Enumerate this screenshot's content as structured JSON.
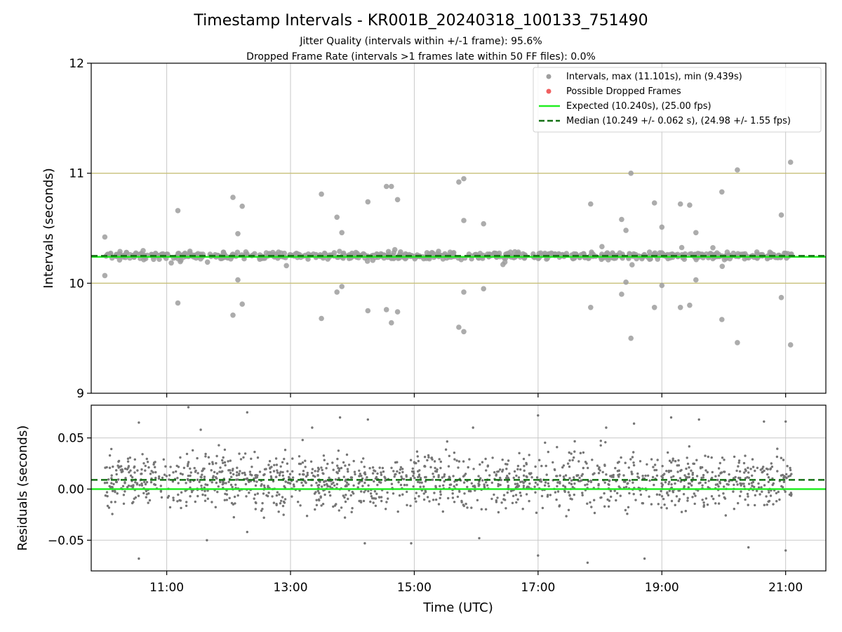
{
  "chart_data": [
    {
      "type": "scatter",
      "title": "Timestamp Intervals - KR001B_20240318_100133_751490",
      "subtitle_lines": [
        "Jitter Quality (intervals within +/-1 frame): 95.6%",
        "Dropped Frame Rate (intervals >1 frames late within 50 FF files): 0.0%"
      ],
      "ylabel": "Intervals (seconds)",
      "ylim": [
        9,
        12
      ],
      "yticks": [
        9,
        10,
        11,
        12
      ],
      "ytick_labels": [
        "9",
        "10",
        "11",
        "12"
      ],
      "xlim_hours": [
        9.78,
        21.65
      ],
      "xticks_hours": [
        11,
        13,
        15,
        17,
        19,
        21
      ],
      "grid": true,
      "reference_lines": [
        {
          "y": 11,
          "color": "#c8c07a"
        },
        {
          "y": 10,
          "color": "#c8c07a"
        }
      ],
      "legend_position": "top-right",
      "legend": [
        {
          "label": "Intervals, max (11.101s), min (9.439s)",
          "marker": "circle",
          "color": "#9e9e9e"
        },
        {
          "label": "Possible Dropped Frames",
          "marker": "circle",
          "color": "#f06060"
        },
        {
          "label": "Expected (10.240s), (25.00 fps)",
          "marker": "solid-line",
          "color": "#22ee22"
        },
        {
          "label": "Median (10.249 +/- 0.062 s), (24.98 +/- 1.55 fps)",
          "marker": "dashed-line",
          "color": "#147014"
        }
      ],
      "series": [
        {
          "name": "Intervals, max (11.101s), min (9.439s)",
          "color": "#9e9e9e",
          "band": {
            "x_start": 10.0,
            "x_end": 21.1,
            "center": 10.25,
            "spread": 0.045,
            "count": 700
          },
          "points": [
            {
              "x": 10.0,
              "y": 10.42
            },
            {
              "x": 10.0,
              "y": 10.07
            },
            {
              "x": 11.18,
              "y": 10.66
            },
            {
              "x": 11.18,
              "y": 9.82
            },
            {
              "x": 12.07,
              "y": 10.78
            },
            {
              "x": 12.07,
              "y": 9.71
            },
            {
              "x": 12.15,
              "y": 10.45
            },
            {
              "x": 12.15,
              "y": 10.03
            },
            {
              "x": 12.22,
              "y": 10.7
            },
            {
              "x": 12.22,
              "y": 9.81
            },
            {
              "x": 13.5,
              "y": 10.81
            },
            {
              "x": 13.5,
              "y": 9.68
            },
            {
              "x": 13.75,
              "y": 10.6
            },
            {
              "x": 13.75,
              "y": 9.92
            },
            {
              "x": 13.83,
              "y": 10.46
            },
            {
              "x": 13.83,
              "y": 9.97
            },
            {
              "x": 14.25,
              "y": 10.74
            },
            {
              "x": 14.25,
              "y": 9.75
            },
            {
              "x": 14.55,
              "y": 10.88
            },
            {
              "x": 14.55,
              "y": 9.76
            },
            {
              "x": 14.63,
              "y": 10.88
            },
            {
              "x": 14.63,
              "y": 9.64
            },
            {
              "x": 14.73,
              "y": 10.76
            },
            {
              "x": 14.73,
              "y": 9.74
            },
            {
              "x": 15.72,
              "y": 10.92
            },
            {
              "x": 15.72,
              "y": 9.6
            },
            {
              "x": 15.8,
              "y": 10.95
            },
            {
              "x": 15.8,
              "y": 9.56
            },
            {
              "x": 15.8,
              "y": 10.57
            },
            {
              "x": 15.8,
              "y": 9.92
            },
            {
              "x": 16.12,
              "y": 10.54
            },
            {
              "x": 16.12,
              "y": 9.95
            },
            {
              "x": 17.85,
              "y": 10.72
            },
            {
              "x": 17.85,
              "y": 9.78
            },
            {
              "x": 18.35,
              "y": 10.58
            },
            {
              "x": 18.35,
              "y": 9.9
            },
            {
              "x": 18.42,
              "y": 10.48
            },
            {
              "x": 18.42,
              "y": 10.01
            },
            {
              "x": 18.5,
              "y": 11.0
            },
            {
              "x": 18.5,
              "y": 9.5
            },
            {
              "x": 18.88,
              "y": 10.73
            },
            {
              "x": 18.88,
              "y": 9.78
            },
            {
              "x": 19.0,
              "y": 10.51
            },
            {
              "x": 19.0,
              "y": 9.98
            },
            {
              "x": 19.3,
              "y": 10.72
            },
            {
              "x": 19.3,
              "y": 9.78
            },
            {
              "x": 19.45,
              "y": 10.71
            },
            {
              "x": 19.45,
              "y": 9.8
            },
            {
              "x": 19.55,
              "y": 10.46
            },
            {
              "x": 19.55,
              "y": 10.03
            },
            {
              "x": 19.97,
              "y": 10.83
            },
            {
              "x": 19.97,
              "y": 9.67
            },
            {
              "x": 20.22,
              "y": 11.03
            },
            {
              "x": 20.22,
              "y": 9.46
            },
            {
              "x": 20.93,
              "y": 10.62
            },
            {
              "x": 20.93,
              "y": 9.87
            },
            {
              "x": 21.08,
              "y": 11.1
            },
            {
              "x": 21.08,
              "y": 9.44
            }
          ]
        },
        {
          "name": "Expected (10.240s), (25.00 fps)",
          "type": "hline",
          "y": 10.24,
          "color": "#22ee22",
          "style": "solid"
        },
        {
          "name": "Median (10.249 +/- 0.062 s), (24.98 +/- 1.55 fps)",
          "type": "hline",
          "y": 10.249,
          "color": "#147014",
          "style": "dashed"
        }
      ]
    },
    {
      "type": "scatter",
      "xlabel": "Time (UTC)",
      "ylabel": "Residuals (seconds)",
      "ylim": [
        -0.08,
        0.082
      ],
      "yticks": [
        -0.05,
        0.0,
        0.05
      ],
      "ytick_labels": [
        "−0.05",
        "0.00",
        "0.05"
      ],
      "xlim_hours": [
        9.78,
        21.65
      ],
      "xticks_hours": [
        11,
        13,
        15,
        17,
        19,
        21
      ],
      "xtick_labels": [
        "11:00",
        "13:00",
        "15:00",
        "17:00",
        "19:00",
        "21:00"
      ],
      "grid": true,
      "series": [
        {
          "name": "",
          "color": "#757575",
          "band": {
            "x_start": 10.0,
            "x_end": 21.1,
            "center": 0.008,
            "spread": 0.016,
            "count": 1500
          },
          "points": [
            {
              "x": 10.55,
              "y": 0.065
            },
            {
              "x": 10.55,
              "y": -0.068
            },
            {
              "x": 11.35,
              "y": 0.08
            },
            {
              "x": 11.55,
              "y": 0.058
            },
            {
              "x": 11.65,
              "y": -0.05
            },
            {
              "x": 12.3,
              "y": 0.075
            },
            {
              "x": 12.3,
              "y": -0.042
            },
            {
              "x": 13.35,
              "y": 0.06
            },
            {
              "x": 13.8,
              "y": 0.07
            },
            {
              "x": 14.2,
              "y": -0.053
            },
            {
              "x": 14.25,
              "y": 0.068
            },
            {
              "x": 14.95,
              "y": -0.053
            },
            {
              "x": 15.95,
              "y": 0.06
            },
            {
              "x": 16.05,
              "y": -0.048
            },
            {
              "x": 17.0,
              "y": 0.072
            },
            {
              "x": 17.0,
              "y": -0.065
            },
            {
              "x": 17.8,
              "y": -0.072
            },
            {
              "x": 18.1,
              "y": 0.06
            },
            {
              "x": 18.55,
              "y": 0.064
            },
            {
              "x": 18.72,
              "y": -0.068
            },
            {
              "x": 19.15,
              "y": 0.07
            },
            {
              "x": 19.6,
              "y": 0.068
            },
            {
              "x": 20.4,
              "y": -0.057
            },
            {
              "x": 20.65,
              "y": 0.066
            },
            {
              "x": 21.0,
              "y": 0.066
            },
            {
              "x": 21.0,
              "y": -0.06
            }
          ]
        },
        {
          "name": "",
          "type": "hline",
          "y": 0.0,
          "color": "#22ee22",
          "style": "solid"
        },
        {
          "name": "",
          "type": "hline",
          "y": 0.009,
          "color": "#147014",
          "style": "dashed"
        }
      ]
    }
  ]
}
